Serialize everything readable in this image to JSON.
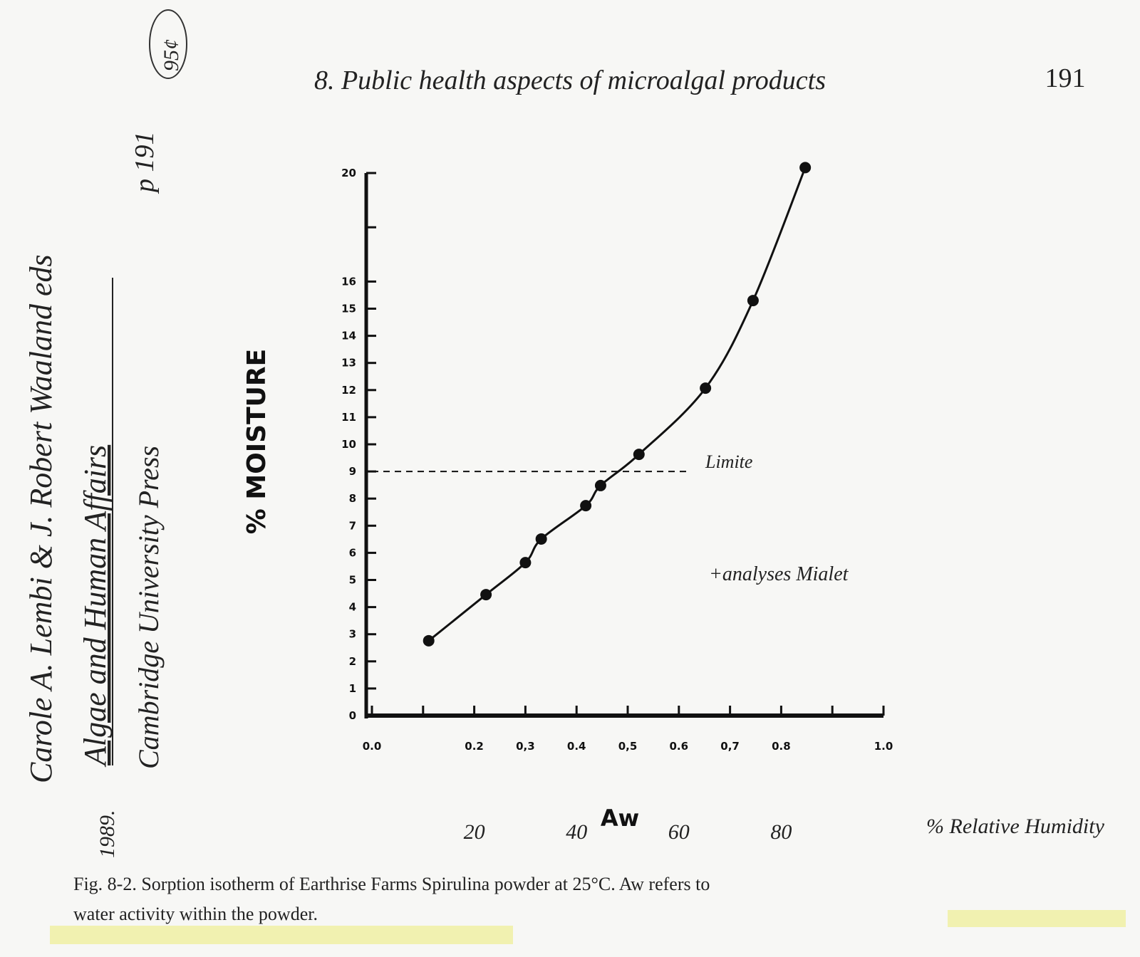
{
  "header": {
    "title": "8. Public health aspects of microalgal products",
    "page_number": "191"
  },
  "margin_notes": {
    "authors": "Carole A. Lembi & J. Robert Waaland eds",
    "book": "Algae and Human Affairs",
    "publisher": "Cambridge University Press",
    "page": "p 191",
    "year": "1989.",
    "price": "95¢"
  },
  "chart_data": {
    "type": "line",
    "ylabel": "% MOISTURE",
    "xlabel": "Aw",
    "x2label": "% Relative Humidity",
    "x": [
      0.111,
      0.223,
      0.3,
      0.331,
      0.418,
      0.447,
      0.522,
      0.652,
      0.745,
      0.847
    ],
    "series": [
      {
        "color": "#111111",
        "values": [
          2.76,
          4.46,
          5.64,
          6.51,
          7.74,
          8.48,
          9.63,
          12.07,
          15.3,
          20.2
        ]
      }
    ],
    "xlim": [
      0,
      1
    ],
    "ylim": [
      0,
      20
    ],
    "xticks": [
      {
        "value": 0,
        "label": "0.0"
      },
      0.2,
      {
        "value": 0.3,
        "label": "0,3"
      },
      0.4,
      {
        "value": 0.5,
        "label": "0,5"
      },
      0.6,
      {
        "value": 0.7,
        "label": "0,7"
      },
      0.8,
      {
        "value": 1,
        "label": "1.0"
      }
    ],
    "xminorticks": [
      0.1,
      0.9
    ],
    "yticks": [
      0,
      1,
      2,
      3,
      4,
      5,
      6,
      7,
      8,
      9,
      10,
      11,
      12,
      13,
      14,
      15,
      16,
      20
    ],
    "yminorticks": [
      18
    ],
    "x2lim": [
      0,
      100
    ],
    "x2ticks": [
      20,
      40,
      60,
      80
    ],
    "limit": {
      "value": 9,
      "x_end": 0.617,
      "label": "Limite"
    },
    "annotation": "+analyses Mialet"
  },
  "caption": {
    "line1": "Fig. 8-2. Sorption isotherm of Earthrise Farms Spirulina powder at 25°C. Aw refers to",
    "line2": "water activity within the powder."
  }
}
